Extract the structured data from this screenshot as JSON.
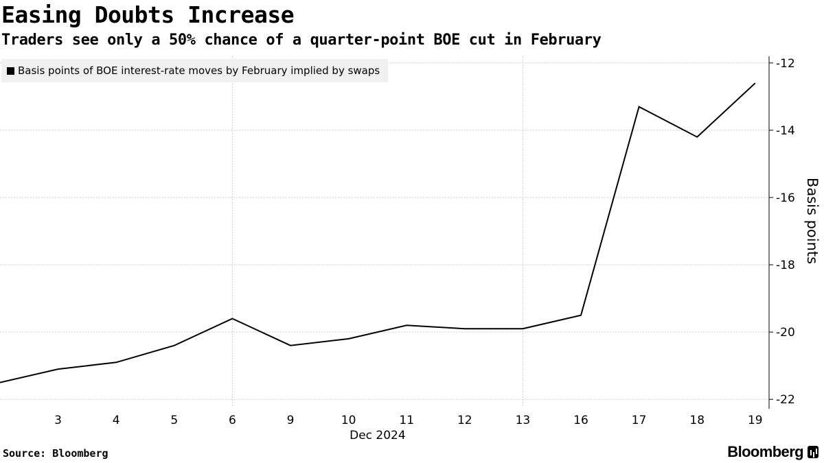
{
  "title": "Easing Doubts Increase",
  "subtitle": "Traders see only a 50% chance of a quarter-point BOE cut in February",
  "footer": {
    "source": "Source: Bloomberg",
    "brand": "Bloomberg"
  },
  "chart_data": {
    "type": "line",
    "title": "Easing Doubts Increase",
    "subtitle": "Traders see only a 50% chance of a quarter-point BOE cut in February",
    "legend": "Basis points of BOE interest-rate moves by February implied by swaps",
    "legend_position": "top-left",
    "xlabel": "Dec 2024",
    "ylabel": "Basis points",
    "categories": [
      "2",
      "3",
      "4",
      "5",
      "6",
      "9",
      "10",
      "11",
      "12",
      "13",
      "16",
      "17",
      "18",
      "19"
    ],
    "x_tick_labels": [
      "3",
      "4",
      "5",
      "6",
      "9",
      "10",
      "11",
      "12",
      "13",
      "16",
      "17",
      "18",
      "19"
    ],
    "series": [
      {
        "name": "Basis points of BOE interest-rate moves by February implied by swaps",
        "color": "#000000",
        "values": [
          -21.5,
          -21.1,
          -20.9,
          -20.4,
          -19.6,
          -20.4,
          -20.2,
          -19.8,
          -19.9,
          -19.9,
          -19.5,
          -13.3,
          -14.2,
          -12.6
        ]
      }
    ],
    "ylim": [
      -22.2,
      -11.8
    ],
    "y_ticks": [
      -12,
      -14,
      -16,
      -18,
      -20,
      -22
    ],
    "y_tick_labels": [
      "-12",
      "-14",
      "-16",
      "-18",
      "-20",
      "-22"
    ],
    "y_axis_side": "right",
    "grid": true,
    "gridline_color": "#cccccc"
  }
}
